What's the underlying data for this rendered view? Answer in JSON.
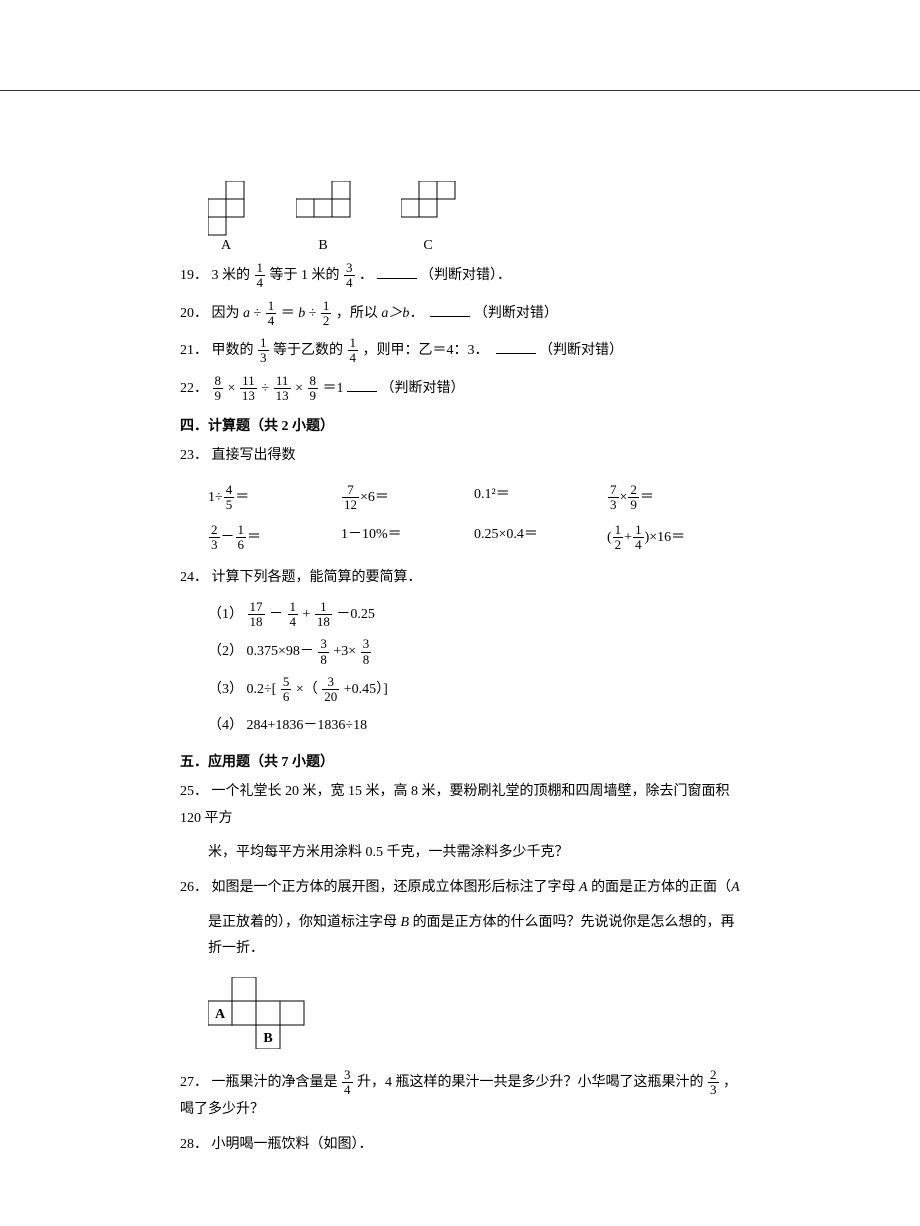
{
  "tetromino": {
    "cell": 18,
    "stroke": "#000000",
    "fill": "#ffffff",
    "labels": [
      "A",
      "B",
      "C"
    ]
  },
  "q19": {
    "num": "19．",
    "prefix": "3 米的",
    "f1_n": "1",
    "f1_d": "4",
    "mid": "等于 1 米的",
    "f2_n": "3",
    "f2_d": "4",
    "suffix1": "．",
    "suffix2": "（判断对错）．"
  },
  "q20": {
    "num": "20．",
    "t1": "因为",
    "a": "a",
    "div": "÷",
    "f1_n": "1",
    "f1_d": "4",
    "eq": "＝",
    "b": "b",
    "f2_n": "1",
    "f2_d": "2",
    "t2": "，所以",
    "rel": "a＞b．",
    "judge": "（判断对错）"
  },
  "q21": {
    "num": "21．",
    "t1": "甲数的",
    "f1_n": "1",
    "f1_d": "3",
    "t2": "等于乙数的",
    "f2_n": "1",
    "f2_d": "4",
    "t3": "，则甲：乙＝4：3．",
    "judge": "（判断对错）"
  },
  "q22": {
    "num": "22．",
    "f1_n": "8",
    "f1_d": "9",
    "m1": "×",
    "f2_n": "11",
    "f2_d": "13",
    "m2": "÷",
    "f3_n": "11",
    "f3_d": "13",
    "m3": "×",
    "f4_n": "8",
    "f4_d": "9",
    "eq": "＝1",
    "judge": "（判断对错）"
  },
  "sec4": "四．计算题（共 2 小题）",
  "q23": {
    "num": "23．",
    "text": "直接写出得数"
  },
  "calc1": [
    {
      "type": "frac-div",
      "a": "1",
      "n": "4",
      "d": "5"
    },
    {
      "type": "frac-mul",
      "n": "7",
      "d": "12",
      "b": "6"
    },
    {
      "type": "plain",
      "t": "0.1²＝"
    },
    {
      "type": "frac-x-frac",
      "n1": "7",
      "d1": "3",
      "n2": "2",
      "d2": "9"
    },
    {
      "type": "frac-minus-frac",
      "n1": "2",
      "d1": "3",
      "n2": "1",
      "d2": "6"
    },
    {
      "type": "plain",
      "t": "1－10%＝"
    },
    {
      "type": "plain",
      "t": "0.25×0.4＝"
    },
    {
      "type": "paren-sum-mul",
      "n1": "1",
      "d1": "2",
      "n2": "1",
      "d2": "4",
      "b": "16"
    }
  ],
  "q24": {
    "num": "24．",
    "text": "计算下列各题，能简算的要简算．"
  },
  "q24_items": {
    "i1_label": "（1）",
    "i1_f1_n": "17",
    "i1_f1_d": "18",
    "i1_m1": "－",
    "i1_f2_n": "1",
    "i1_f2_d": "4",
    "i1_m2": "+",
    "i1_f3_n": "1",
    "i1_f3_d": "18",
    "i1_tail": "－0.25",
    "i2_label": "（2）",
    "i2_a": "0.375×98－",
    "i2_f1_n": "3",
    "i2_f1_d": "8",
    "i2_m": "+3×",
    "i2_f2_n": "3",
    "i2_f2_d": "8",
    "i3_label": "（3）",
    "i3_a": "0.2÷[",
    "i3_f1_n": "5",
    "i3_f1_d": "6",
    "i3_m1": "×（",
    "i3_f2_n": "3",
    "i3_f2_d": "20",
    "i3_t": "+0.45）]",
    "i4_label": "（4）",
    "i4_t": "284+1836－1836÷18"
  },
  "sec5": "五．应用题（共 7 小题）",
  "q25": {
    "num": "25．",
    "l1": "一个礼堂长 20 米，宽 15 米，高 8 米，要粉刷礼堂的顶棚和四周墙壁，除去门窗面积 120 平方",
    "l2": "米，平均每平方米用涂料 0.5 千克，一共需涂料多少千克？"
  },
  "q26": {
    "num": "26．",
    "l1a": "如图是一个正方体的展开图，还原成立体图形后标注了字母 ",
    "l1b_i": "A",
    "l1c": " 的面是正方体的正面（",
    "l1d_i": "A",
    "l2a": "是正放着的），你知道标注字母 ",
    "l2b_i": "B",
    "l2c": " 的面是正方体的什么面吗？先说说你是怎么想的，再折一折．"
  },
  "net": {
    "cell": 24,
    "stroke": "#000000",
    "labelA": "A",
    "labelB": "B"
  },
  "q27": {
    "num": "27．",
    "t1": "一瓶果汁的净含量是",
    "f1_n": "3",
    "f1_d": "4",
    "t2": "升，4 瓶这样的果汁一共是多少升？小华喝了这瓶果汁的",
    "f2_n": "2",
    "f2_d": "3",
    "t3": "，喝了多少升？"
  },
  "q28": {
    "num": "28．",
    "text": "小明喝一瓶饮料（如图）．"
  }
}
